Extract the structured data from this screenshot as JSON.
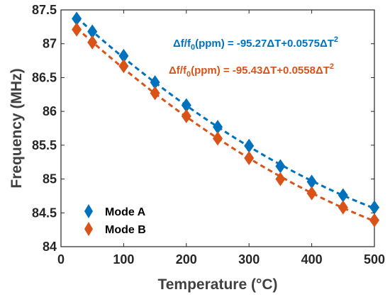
{
  "chart_data": {
    "type": "scatter",
    "xlabel": "Temperature (°C)",
    "ylabel": "Frequency (MHz)",
    "xlim": [
      0,
      500
    ],
    "ylim": [
      84,
      87.5
    ],
    "x_ticks": [
      "0",
      "100",
      "200",
      "300",
      "400",
      "500"
    ],
    "y_ticks": [
      "84",
      "84.5",
      "85",
      "85.5",
      "86",
      "86.5",
      "87",
      "87.5"
    ],
    "legend_position": "bottom-left",
    "grid": false,
    "series": [
      {
        "name": "Mode A",
        "color": "#0072BD",
        "marker": "diamond",
        "x": [
          25,
          50,
          100,
          150,
          200,
          250,
          300,
          350,
          400,
          450,
          500
        ],
        "y": [
          87.37,
          87.18,
          86.82,
          86.43,
          86.09,
          85.77,
          85.49,
          85.19,
          84.96,
          84.76,
          84.58
        ],
        "fit_line": "dashed",
        "equation": {
          "delta": "Δ",
          "f": "f/f",
          "sub": "0",
          "body": "(ppm) = -95.27ΔT+0.0575ΔT",
          "sup": "2"
        }
      },
      {
        "name": "Mode B",
        "color": "#D95319",
        "marker": "diamond",
        "x": [
          25,
          50,
          100,
          150,
          200,
          250,
          300,
          350,
          400,
          450,
          500
        ],
        "y": [
          87.21,
          87.02,
          86.67,
          86.27,
          85.93,
          85.6,
          85.31,
          85.0,
          84.79,
          84.58,
          84.39
        ],
        "fit_line": "dashed",
        "equation": {
          "delta": "Δ",
          "f": "f/f",
          "sub": "0",
          "body": "(ppm) = -95.43ΔT+0.0558ΔT",
          "sup": "2"
        }
      }
    ]
  }
}
